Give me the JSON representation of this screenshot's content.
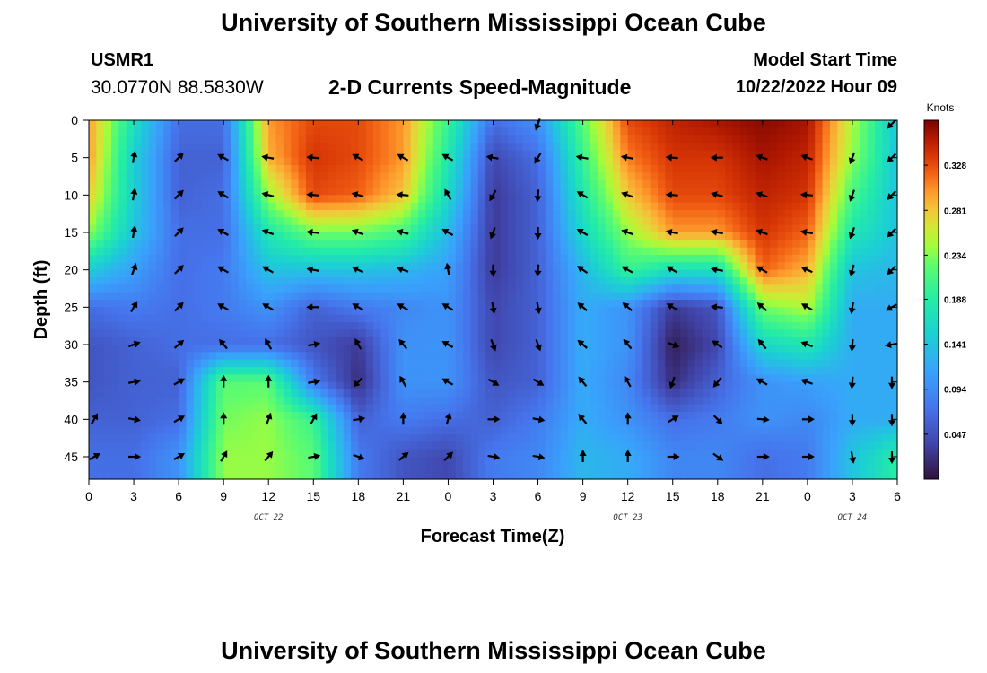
{
  "header": {
    "title": "University of Southern Mississippi Ocean Cube",
    "station": "USMR1",
    "coordinates": "30.0770N  88.5830W",
    "subtitle": "2-D Currents Speed-Magnitude",
    "model_start_label": "Model Start Time",
    "model_start_value": "10/22/2022 Hour 09"
  },
  "footer": {
    "title": "University of Southern Mississippi Ocean Cube"
  },
  "chart_data": {
    "type": "heatmap",
    "title": "2-D Currents Speed-Magnitude",
    "xlabel": "Forecast Time(Z)",
    "ylabel": "Depth (ft)",
    "x_hours": [
      0,
      3,
      6,
      9,
      12,
      15,
      18,
      21,
      24,
      27,
      30,
      33,
      36,
      39,
      42,
      45,
      48,
      51,
      54
    ],
    "x_tick_labels": [
      "0",
      "3",
      "6",
      "9",
      "12",
      "15",
      "18",
      "21",
      "0",
      "3",
      "6",
      "9",
      "12",
      "15",
      "18",
      "21",
      "0",
      "3",
      "6"
    ],
    "date_labels": [
      {
        "text": "OCT 22",
        "hour": 12
      },
      {
        "text": "OCT 23",
        "hour": 36
      },
      {
        "text": "OCT 24",
        "hour": 51
      }
    ],
    "y_ticks": [
      0,
      5,
      10,
      15,
      20,
      25,
      30,
      35,
      40,
      45
    ],
    "depths_ft": [
      0,
      5,
      10,
      15,
      20,
      25,
      30,
      35,
      40,
      45
    ],
    "xlim": [
      0,
      54
    ],
    "ylim": [
      48,
      0
    ],
    "colorbar": {
      "units": "Knots",
      "ticks": [
        0.047,
        0.094,
        0.141,
        0.188,
        0.234,
        0.281,
        0.328
      ],
      "range": [
        0.0,
        0.375
      ]
    },
    "speed_knots": [
      [
        0.3,
        0.17,
        0.07,
        0.07,
        0.3,
        0.33,
        0.33,
        0.3,
        0.2,
        0.07,
        0.1,
        0.22,
        0.33,
        0.35,
        0.36,
        0.37,
        0.36,
        0.25,
        0.14
      ],
      [
        0.3,
        0.15,
        0.06,
        0.06,
        0.29,
        0.34,
        0.33,
        0.3,
        0.18,
        0.04,
        0.07,
        0.2,
        0.31,
        0.34,
        0.34,
        0.36,
        0.35,
        0.24,
        0.14
      ],
      [
        0.28,
        0.15,
        0.06,
        0.07,
        0.24,
        0.33,
        0.32,
        0.28,
        0.16,
        0.03,
        0.06,
        0.18,
        0.28,
        0.33,
        0.33,
        0.35,
        0.34,
        0.21,
        0.14
      ],
      [
        0.24,
        0.14,
        0.07,
        0.07,
        0.18,
        0.23,
        0.23,
        0.21,
        0.13,
        0.03,
        0.06,
        0.16,
        0.24,
        0.3,
        0.3,
        0.34,
        0.32,
        0.18,
        0.14
      ],
      [
        0.15,
        0.11,
        0.07,
        0.08,
        0.14,
        0.14,
        0.14,
        0.13,
        0.11,
        0.03,
        0.06,
        0.13,
        0.2,
        0.17,
        0.17,
        0.32,
        0.29,
        0.14,
        0.13
      ],
      [
        0.07,
        0.08,
        0.07,
        0.08,
        0.1,
        0.06,
        0.08,
        0.09,
        0.1,
        0.04,
        0.06,
        0.12,
        0.1,
        0.03,
        0.05,
        0.23,
        0.25,
        0.12,
        0.12
      ],
      [
        0.05,
        0.06,
        0.07,
        0.07,
        0.07,
        0.05,
        0.03,
        0.1,
        0.1,
        0.04,
        0.06,
        0.12,
        0.1,
        0.01,
        0.04,
        0.16,
        0.18,
        0.12,
        0.12
      ],
      [
        0.05,
        0.06,
        0.06,
        0.22,
        0.22,
        0.08,
        0.02,
        0.1,
        0.1,
        0.05,
        0.06,
        0.12,
        0.09,
        0.02,
        0.06,
        0.1,
        0.11,
        0.12,
        0.12
      ],
      [
        0.06,
        0.06,
        0.07,
        0.23,
        0.24,
        0.2,
        0.06,
        0.08,
        0.07,
        0.06,
        0.08,
        0.12,
        0.1,
        0.07,
        0.08,
        0.1,
        0.09,
        0.12,
        0.12
      ],
      [
        0.07,
        0.07,
        0.1,
        0.24,
        0.24,
        0.22,
        0.08,
        0.05,
        0.04,
        0.08,
        0.09,
        0.13,
        0.12,
        0.09,
        0.09,
        0.07,
        0.08,
        0.14,
        0.19
      ]
    ],
    "arrow_direction_deg": [
      [
        null,
        null,
        null,
        null,
        null,
        null,
        null,
        null,
        null,
        null,
        200,
        null,
        null,
        null,
        null,
        null,
        null,
        null,
        225
      ],
      [
        null,
        10,
        45,
        300,
        280,
        275,
        300,
        300,
        300,
        280,
        210,
        280,
        280,
        275,
        270,
        290,
        290,
        200,
        225
      ],
      [
        null,
        10,
        45,
        300,
        285,
        275,
        285,
        275,
        330,
        210,
        185,
        300,
        290,
        275,
        285,
        290,
        275,
        200,
        225
      ],
      [
        null,
        10,
        45,
        300,
        290,
        275,
        290,
        285,
        300,
        200,
        180,
        300,
        290,
        280,
        280,
        290,
        280,
        200,
        225
      ],
      [
        null,
        20,
        45,
        300,
        300,
        280,
        295,
        290,
        350,
        180,
        185,
        305,
        300,
        300,
        280,
        300,
        295,
        195,
        225
      ],
      [
        null,
        30,
        45,
        300,
        300,
        270,
        300,
        300,
        300,
        170,
        170,
        310,
        310,
        300,
        275,
        310,
        300,
        190,
        240
      ],
      [
        null,
        70,
        50,
        320,
        330,
        80,
        330,
        320,
        300,
        160,
        160,
        310,
        320,
        110,
        305,
        320,
        290,
        185,
        260
      ],
      [
        null,
        80,
        60,
        0,
        0,
        80,
        225,
        330,
        300,
        120,
        120,
        320,
        330,
        200,
        220,
        300,
        290,
        185,
        180
      ],
      [
        30,
        100,
        60,
        0,
        20,
        30,
        80,
        0,
        15,
        90,
        100,
        320,
        0,
        60,
        135,
        95,
        90,
        180,
        180
      ],
      [
        60,
        90,
        60,
        30,
        40,
        80,
        110,
        50,
        45,
        100,
        100,
        0,
        0,
        90,
        125,
        90,
        90,
        170,
        180
      ]
    ]
  }
}
